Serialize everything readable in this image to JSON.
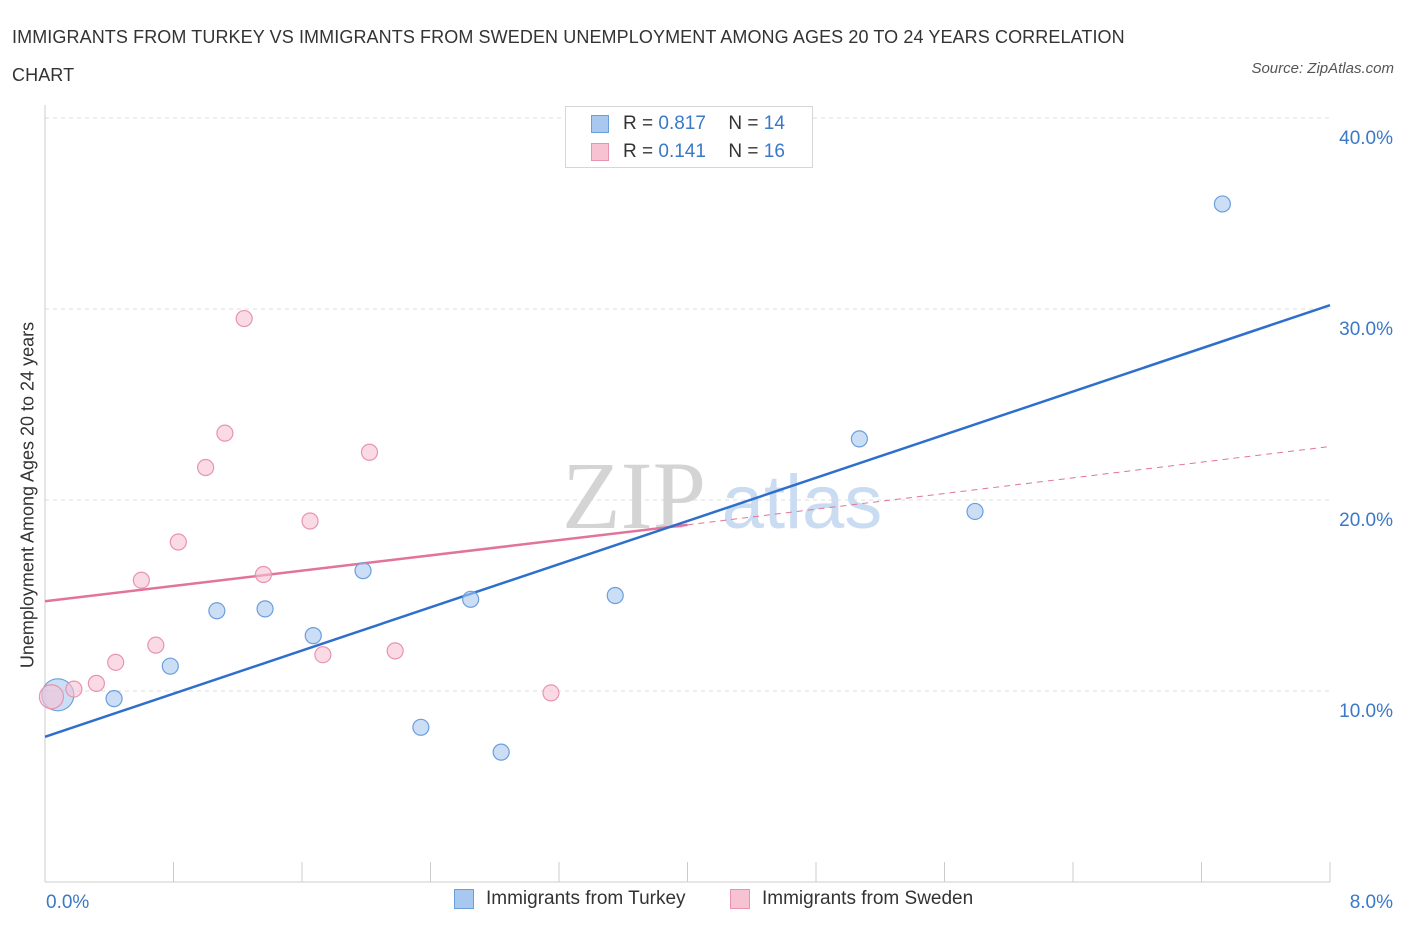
{
  "title": "IMMIGRANTS FROM TURKEY VS IMMIGRANTS FROM SWEDEN UNEMPLOYMENT AMONG AGES 20 TO 24 YEARS CORRELATION CHART",
  "source": "Source: ZipAtlas.com",
  "watermark": {
    "zip": "ZIP",
    "atlas": "atlas"
  },
  "legend_top": [
    {
      "r_label": "R =",
      "r_value": "0.817",
      "n_label": "N =",
      "n_value": "14"
    },
    {
      "r_label": "R =",
      "r_value": "0.141",
      "n_label": "N =",
      "n_value": "16"
    }
  ],
  "chart_data": {
    "type": "scatter",
    "title": "IMMIGRANTS FROM TURKEY VS IMMIGRANTS FROM SWEDEN UNEMPLOYMENT AMONG AGES 20 TO 24 YEARS CORRELATION CHART",
    "xlabel": "",
    "ylabel": "Unemployment Among Ages 20 to 24 years",
    "xlim": [
      0,
      8
    ],
    "ylim": [
      0,
      40
    ],
    "x_tick_labels": [
      "0.0%",
      "8.0%"
    ],
    "y_ticks": [
      10,
      20,
      30,
      40
    ],
    "y_tick_labels": [
      "10.0%",
      "20.0%",
      "30.0%",
      "40.0%"
    ],
    "grid": true,
    "legend_position": "top-center",
    "series": [
      {
        "name": "Immigrants from Turkey",
        "color": "#a9c8ef",
        "stroke": "#6a9fdc",
        "line_color": "#2f6fcc",
        "points": [
          [
            0.08,
            9.8
          ],
          [
            0.43,
            9.6
          ],
          [
            0.78,
            11.3
          ],
          [
            1.07,
            14.2
          ],
          [
            1.37,
            14.3
          ],
          [
            1.67,
            12.9
          ],
          [
            1.98,
            16.3
          ],
          [
            2.34,
            8.1
          ],
          [
            2.65,
            14.8
          ],
          [
            2.84,
            6.8
          ],
          [
            3.55,
            15.0
          ],
          [
            5.07,
            23.2
          ],
          [
            5.79,
            19.4
          ],
          [
            7.33,
            35.5
          ]
        ],
        "trend": {
          "x": [
            0,
            8
          ],
          "y": [
            7.6,
            30.2
          ]
        }
      },
      {
        "name": "Immigrants from Sweden",
        "color": "#f7c3d3",
        "stroke": "#e894ae",
        "line_color": "#e2739a",
        "points": [
          [
            0.04,
            9.7
          ],
          [
            0.18,
            10.1
          ],
          [
            0.32,
            10.4
          ],
          [
            0.44,
            11.5
          ],
          [
            0.6,
            15.8
          ],
          [
            0.69,
            12.4
          ],
          [
            0.83,
            17.8
          ],
          [
            1.0,
            21.7
          ],
          [
            1.12,
            23.5
          ],
          [
            1.24,
            29.5
          ],
          [
            1.36,
            16.1
          ],
          [
            1.65,
            18.9
          ],
          [
            1.73,
            11.9
          ],
          [
            2.02,
            22.5
          ],
          [
            2.18,
            12.1
          ],
          [
            3.15,
            9.9
          ]
        ],
        "trend": {
          "x": [
            0,
            4.0
          ],
          "y": [
            14.7,
            18.7
          ]
        },
        "trend_dashed": {
          "x": [
            4.0,
            8
          ],
          "y": [
            18.7,
            22.8
          ]
        }
      }
    ]
  }
}
